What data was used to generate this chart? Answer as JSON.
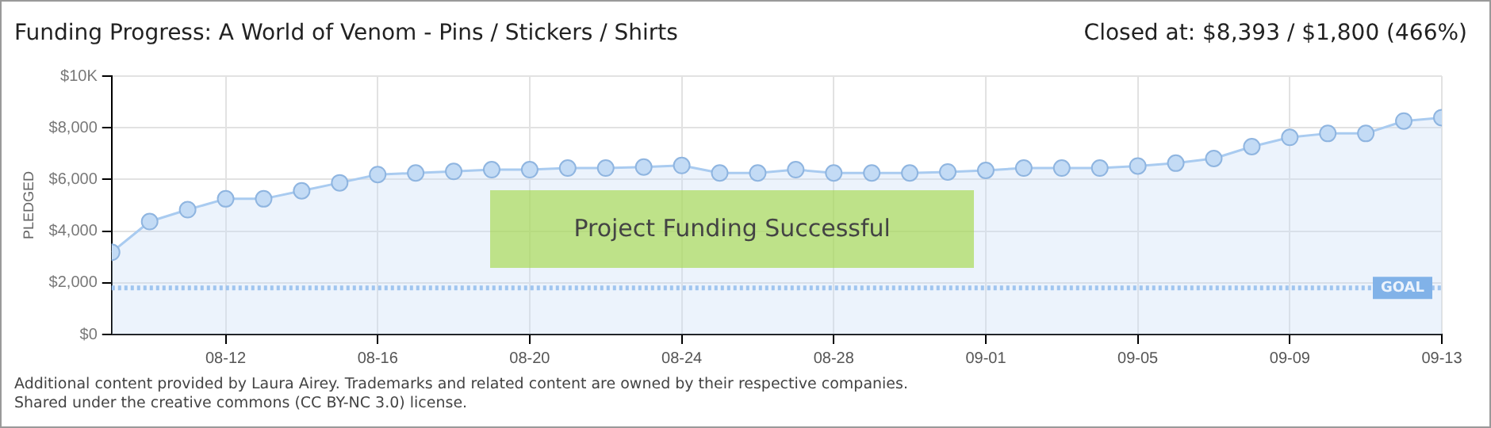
{
  "chart_data": {
    "type": "area",
    "title": "Funding Progress: A World of Venom - Pins / Stickers / Shirts",
    "subtitle": "Closed at: $8,393 / $1,800 (466%)",
    "ylabel": "PLEDGED",
    "x": [
      "--08-09",
      "--08-10",
      "--08-11",
      "--08-12",
      "--08-13",
      "--08-14",
      "--08-15",
      "--08-16",
      "--08-17",
      "--08-18",
      "--08-19",
      "--08-20",
      "--08-21",
      "--08-22",
      "--08-23",
      "--08-24",
      "--08-25",
      "--08-26",
      "--08-27",
      "--08-28",
      "--08-29",
      "--08-30",
      "--08-31",
      "--09-01",
      "--09-02",
      "--09-03",
      "--09-04",
      "--09-05",
      "--09-06",
      "--09-07",
      "--09-08",
      "--09-09",
      "--09-10",
      "--09-11",
      "--09-12",
      "--09-13"
    ],
    "series": [
      {
        "color": "#a9cbf0",
        "values": [
          3180,
          4370,
          4830,
          5250,
          5250,
          5560,
          5870,
          6190,
          6250,
          6310,
          6380,
          6380,
          6440,
          6440,
          6480,
          6540,
          6250,
          6250,
          6380,
          6250,
          6250,
          6250,
          6290,
          6350,
          6440,
          6440,
          6440,
          6520,
          6630,
          6810,
          7270,
          7630,
          7780,
          7780,
          8260,
          8393
        ]
      }
    ],
    "xlim": [
      "--08-09",
      "--09-13"
    ],
    "xticks": [
      {
        "value": "--08-12",
        "label": "08-12"
      },
      {
        "value": "--08-16",
        "label": "08-16"
      },
      {
        "value": "--08-20",
        "label": "08-20"
      },
      {
        "value": "--08-24",
        "label": "08-24"
      },
      {
        "value": "--08-28",
        "label": "08-28"
      },
      {
        "value": "--09-01",
        "label": "09-01"
      },
      {
        "value": "--09-05",
        "label": "09-05"
      },
      {
        "value": "--09-09",
        "label": "09-09"
      },
      {
        "value": "--09-13",
        "label": "09-13"
      }
    ],
    "ylim": [
      0,
      10000
    ],
    "yticks": [
      {
        "value": 0,
        "label": "$0"
      },
      {
        "value": 2000,
        "label": "$2,000"
      },
      {
        "value": 4000,
        "label": "$4,000"
      },
      {
        "value": 6000,
        "label": "$6,000"
      },
      {
        "value": 8000,
        "label": "$8,000"
      },
      {
        "value": 10000,
        "label": "$10K"
      }
    ],
    "ref_lines": [
      {
        "axis": "y",
        "value": 1800,
        "label": "GOAL",
        "color": "#8ab8ec",
        "line_style": "dotted"
      }
    ],
    "annotations": [
      "Project Funding Successful",
      "Additional content provided by Laura Airey. Trademarks and related content are owned by their respective companies.",
      "Shared under the creative commons (CC BY-NC 3.0) license."
    ],
    "grid": true,
    "legend": false,
    "marker": "circle",
    "line_style": "solid"
  }
}
